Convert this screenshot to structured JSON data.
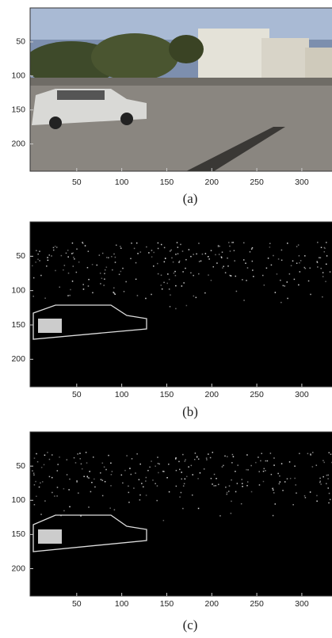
{
  "chart_data": [
    {
      "type": "image",
      "caption": "(a)",
      "xlim": [
        0,
        352
      ],
      "ylim": [
        0,
        240
      ],
      "xticks": [
        50,
        100,
        150,
        200,
        250,
        300
      ],
      "yticks": [
        50,
        100,
        150,
        200
      ]
    },
    {
      "type": "image",
      "caption": "(b)",
      "xlim": [
        0,
        352
      ],
      "ylim": [
        0,
        240
      ],
      "xticks": [
        50,
        100,
        150,
        200,
        250,
        300
      ],
      "yticks": [
        50,
        100,
        150,
        200
      ]
    },
    {
      "type": "image",
      "caption": "(c)",
      "xlim": [
        0,
        352
      ],
      "ylim": [
        0,
        240
      ],
      "xticks": [
        50,
        100,
        150,
        200,
        250,
        300
      ],
      "yticks": [
        50,
        100,
        150,
        200
      ]
    }
  ]
}
